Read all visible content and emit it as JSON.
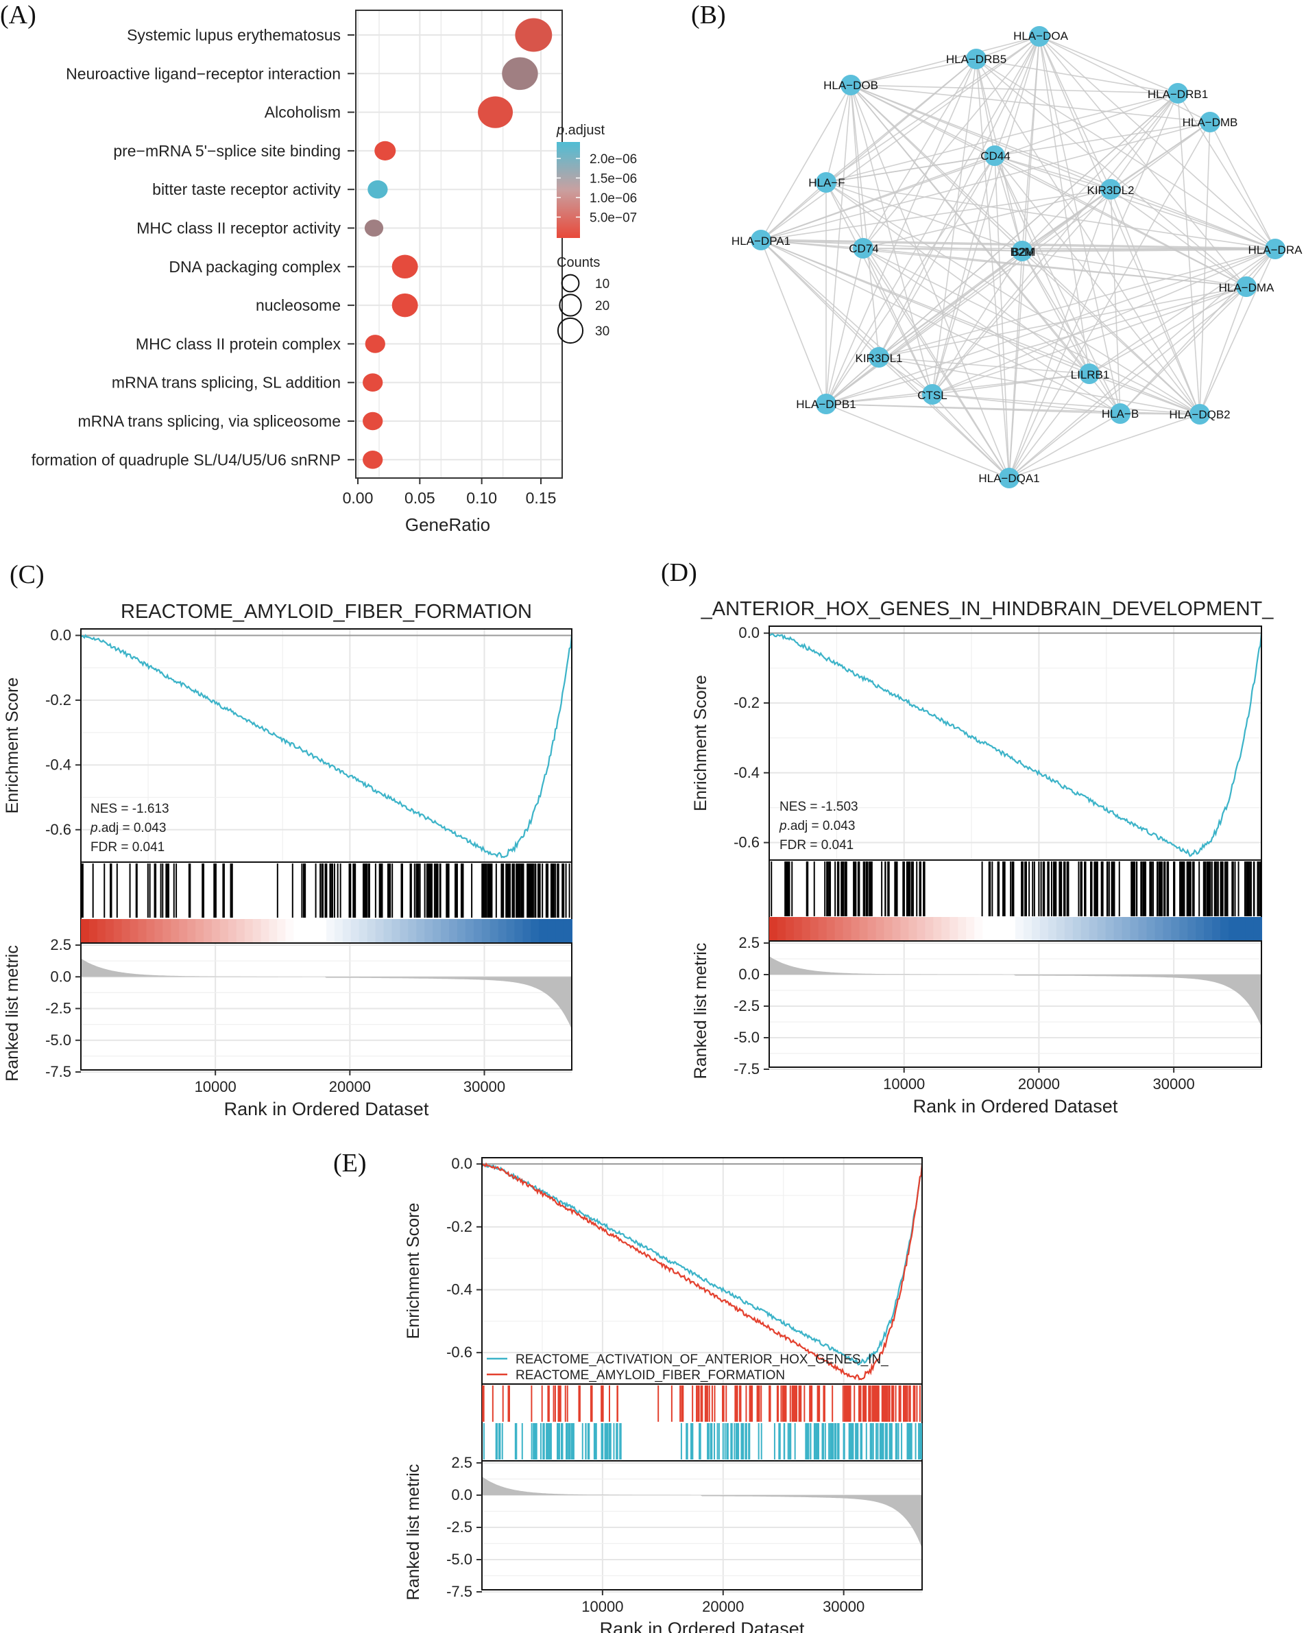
{
  "colors": {
    "dot_low_padj": "#e8493a",
    "dot_high_padj": "#4fbdd4",
    "node": "#5bbfdb",
    "edge": "#c8c8c8",
    "gsea_line": "#3cb3c8",
    "gsea_line_red": "#e3402e",
    "hit": "#000000",
    "metric_fill": "#bdbdbd",
    "grid": "#e6e6e6",
    "heat_red": "#d7301f",
    "heat_blue": "#2166ac"
  },
  "chart_data": [
    {
      "id": "A",
      "panel_label": "(A)",
      "type": "scatter",
      "xlabel": "GeneRatio",
      "xlim": [
        0.0,
        0.15
      ],
      "xticks": [
        "0.00",
        "0.05",
        "0.10",
        "0.15"
      ],
      "categories": [
        "Systemic lupus erythematosus",
        "Neuroactive ligand−receptor interaction",
        "Alcoholism",
        "pre−mRNA 5'−splice site binding",
        "bitter taste receptor activity",
        "MHC class II receptor activity",
        "DNA packaging complex",
        "nucleosome",
        "MHC class II protein complex",
        "mRNA trans splicing, SL addition",
        "mRNA trans splicing, via spliceosome",
        "formation of quadruple SL/U4/U5/U6 snRNP"
      ],
      "gene_ratio": [
        0.138,
        0.127,
        0.111,
        0.022,
        0.016,
        0.013,
        0.038,
        0.038,
        0.014,
        0.012,
        0.012,
        0.012
      ],
      "counts": [
        28,
        26,
        24,
        5,
        4,
        3,
        10,
        10,
        4,
        4,
        4,
        4
      ],
      "p_adjust": [
        3e-07,
        1.2e-06,
        2e-07,
        1e-07,
        2.4e-06,
        1.2e-06,
        1e-07,
        1e-07,
        1e-07,
        1e-07,
        1e-07,
        1e-07
      ],
      "legend_color": {
        "title_italic": "p",
        "title_rest": ".adjust",
        "labels": [
          "2.0e−06",
          "1.5e−06",
          "1.0e−06",
          "5.0e−07"
        ],
        "values": [
          2e-06,
          1.5e-06,
          1e-06,
          5e-07
        ],
        "range": [
          5e-08,
          2.5e-06
        ]
      },
      "legend_size": {
        "title": "Counts",
        "labels": [
          "10",
          "20",
          "30"
        ],
        "values": [
          10,
          20,
          30
        ]
      }
    },
    {
      "id": "B",
      "panel_label": "(B)",
      "type": "network",
      "nodes": [
        "HLA−DOA",
        "HLA−DRB5",
        "HLA−DOB",
        "HLA−DRB1",
        "HLA−DMB",
        "CD44",
        "HLA−F",
        "KIR3DL2",
        "HLA−DPA1",
        "CD74",
        "B2M",
        "HLA−DRA",
        "HLA−DMA",
        "KIR3DL1",
        "LILRB1",
        "CTSL",
        "HLA−DPB1",
        "HLA−B",
        "HLA−DQB2",
        "HLA−DQA1"
      ],
      "hub_overlap_label": "B2M"
    },
    {
      "id": "C",
      "panel_label": "(C)",
      "type": "line",
      "title": "REACTOME_AMYLOID_FIBER_FORMATION",
      "ylabel_top": "Enrichment Score",
      "ylabel_bottom": "Ranked list metric",
      "xlabel": "Rank in Ordered Dataset",
      "xlim": [
        0,
        36500
      ],
      "xticks": [
        10000,
        20000,
        30000
      ],
      "ylim_es": [
        -0.7,
        0.02
      ],
      "yticks_es": [
        "0.0",
        "-0.2",
        "-0.4",
        "-0.6"
      ],
      "ylim_metric": [
        -7.5,
        2.5
      ],
      "yticks_metric": [
        "2.5",
        "0.0",
        "-2.5",
        "-5.0",
        "-7.5"
      ],
      "min_es": -0.68,
      "min_rank": 30800,
      "stats": {
        "nes_label": "NES = -1.613",
        "padj_italic": "p",
        "padj_rest": ".adj = 0.043",
        "fdr_label": "FDR = 0.041"
      }
    },
    {
      "id": "D",
      "panel_label": "(D)",
      "type": "line",
      "title": "_ANTERIOR_HOX_GENES_IN_HINDBRAIN_DEVELOPMENT_",
      "ylabel_top": "Enrichment Score",
      "ylabel_bottom": "Ranked list metric",
      "xlabel": "Rank in Ordered Dataset",
      "xlim": [
        0,
        36500
      ],
      "xticks": [
        10000,
        20000,
        30000
      ],
      "ylim_es": [
        -0.65,
        0.02
      ],
      "yticks_es": [
        "0.0",
        "-0.2",
        "-0.4",
        "-0.6"
      ],
      "ylim_metric": [
        -7.5,
        2.5
      ],
      "yticks_metric": [
        "2.5",
        "0.0",
        "-2.5",
        "-5.0",
        "-7.5"
      ],
      "min_es": -0.63,
      "min_rank": 31000,
      "stats": {
        "nes_label": "NES = -1.503",
        "padj_italic": "p",
        "padj_rest": ".adj = 0.043",
        "fdr_label": "FDR = 0.041"
      }
    },
    {
      "id": "E",
      "panel_label": "(E)",
      "type": "line",
      "ylabel_top": "Enrichment Score",
      "ylabel_bottom": "Ranked list metric",
      "xlabel": "Rank in Ordered Dataset",
      "xlim": [
        0,
        36500
      ],
      "xticks": [
        10000,
        20000,
        30000
      ],
      "ylim_es": [
        -0.7,
        0.02
      ],
      "yticks_es": [
        "0.0",
        "-0.2",
        "-0.4",
        "-0.6"
      ],
      "ylim_metric": [
        -7.5,
        2.5
      ],
      "yticks_metric": [
        "2.5",
        "0.0",
        "-2.5",
        "-5.0",
        "-7.5"
      ],
      "series": [
        {
          "name": "REACTOME_ACTIVATION_OF_ANTERIOR_HOX_GENES_IN_",
          "min_es": -0.63,
          "min_rank": 31000
        },
        {
          "name": "REACTOME_AMYLOID_FIBER_FORMATION",
          "min_es": -0.68,
          "min_rank": 30800
        }
      ]
    }
  ]
}
